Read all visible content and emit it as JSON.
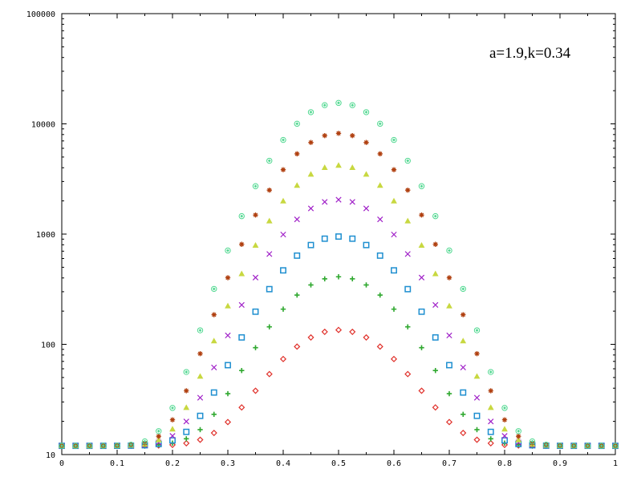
{
  "chart_data": {
    "type": "scatter",
    "title": "",
    "xlabel": "",
    "ylabel": "",
    "xlim": [
      0,
      1
    ],
    "ylim": [
      10,
      100000
    ],
    "y_scale": "log",
    "grid": false,
    "legend": "none",
    "annotation": "a=1.9,k=0.34",
    "x_ticks": [
      "0",
      "0.1",
      "0.2",
      "0.3",
      "0.4",
      "0.5",
      "0.6",
      "0.7",
      "0.8",
      "0.9",
      "1"
    ],
    "y_ticks": [
      "10",
      "100",
      "1000",
      "10000",
      "100000"
    ],
    "series": [
      {
        "marker": "diamond",
        "color": "#e0302a",
        "peak": 135
      },
      {
        "marker": "plus",
        "color": "#2fa82f",
        "peak": 410
      },
      {
        "marker": "square",
        "color": "#1e8fd0",
        "peak": 950
      },
      {
        "marker": "x",
        "color": "#a020c8",
        "peak": 2050
      },
      {
        "marker": "triangle",
        "color": "#c8d840",
        "peak": 4200
      },
      {
        "marker": "star",
        "color": "#b04010",
        "peak": 8200
      },
      {
        "marker": "circle-diamond",
        "color": "#50d890",
        "peak": 15500
      }
    ]
  }
}
